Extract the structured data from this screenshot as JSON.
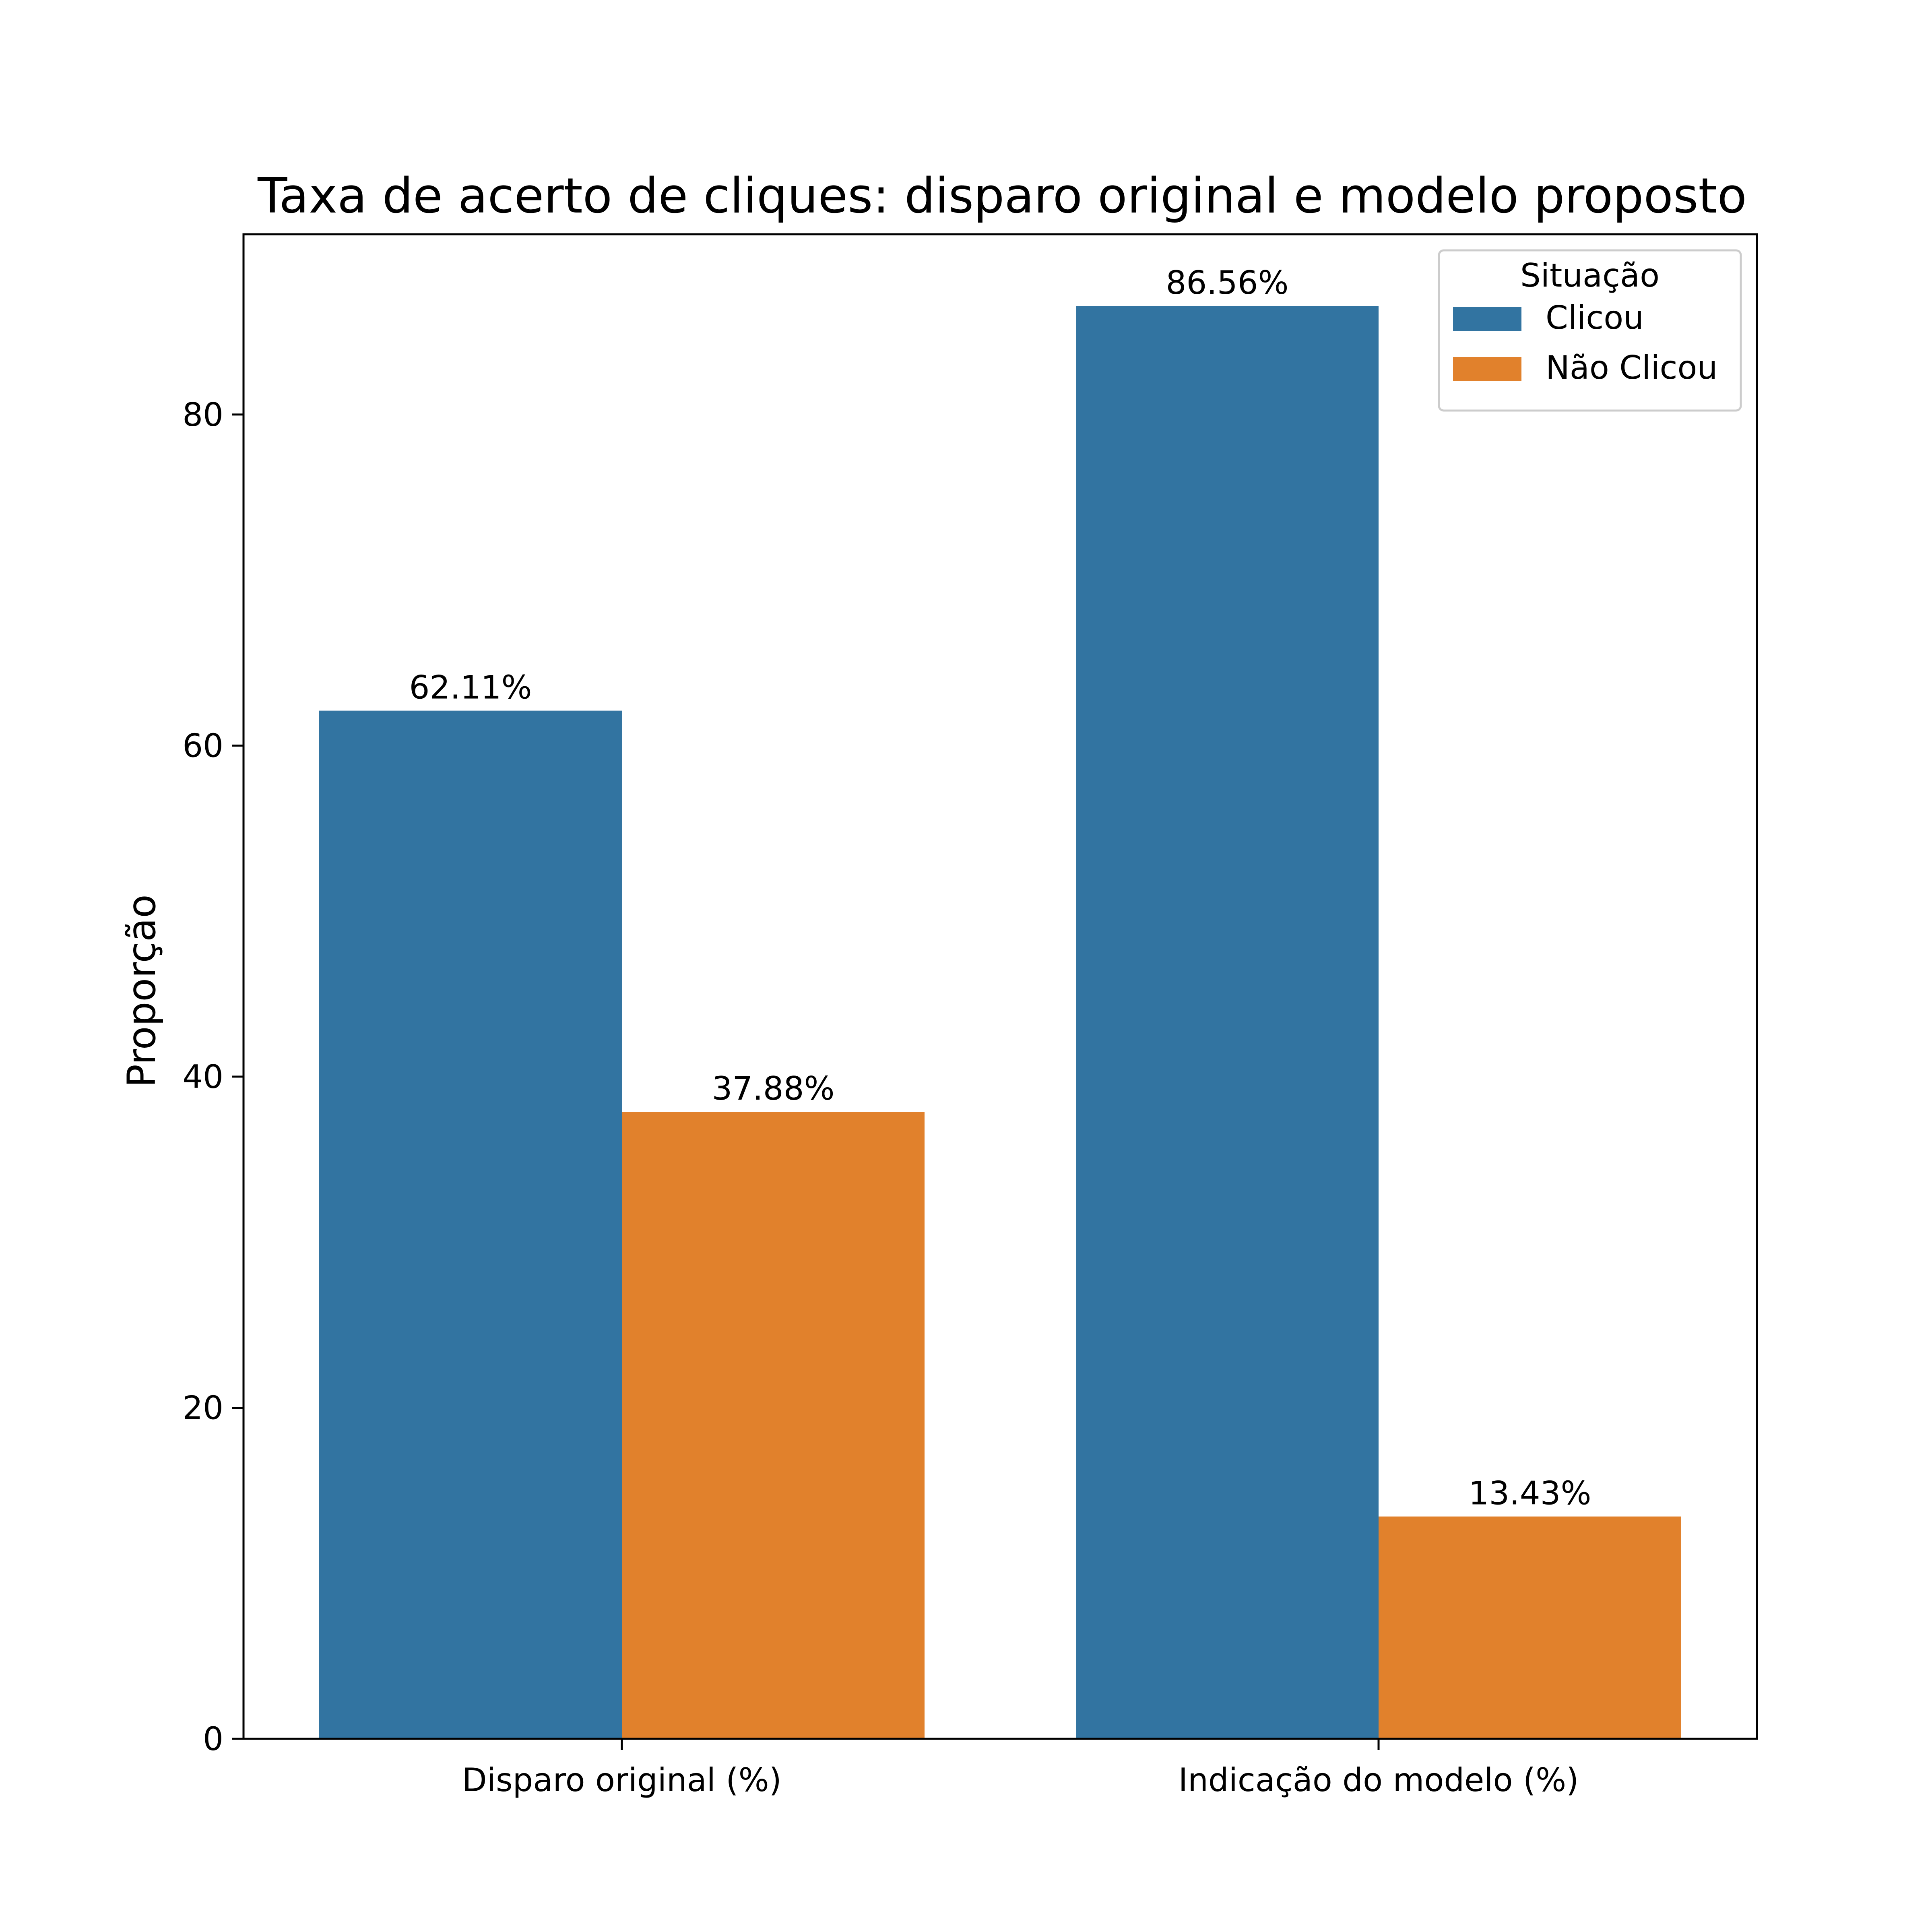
{
  "chart_data": {
    "type": "bar",
    "title": "Taxa de acerto de cliques: disparo original e modelo proposto",
    "xlabel": "",
    "ylabel": "Proporção",
    "categories": [
      "Disparo original (%)",
      "Indicação do modelo (%)"
    ],
    "series": [
      {
        "name": "Clicou",
        "color": "#3274a1",
        "values": [
          62.11,
          86.56
        ],
        "labels": [
          "62.11%",
          "86.56%"
        ]
      },
      {
        "name": "Não Clicou",
        "color": "#e1812c",
        "values": [
          37.88,
          13.43
        ],
        "labels": [
          "37.88%",
          "13.43%"
        ]
      }
    ],
    "ylim": [
      0,
      90.89
    ],
    "yticks": [
      0,
      20,
      40,
      60,
      80
    ],
    "grid": false,
    "legend": {
      "title": "Situação",
      "placement": "top-right"
    }
  }
}
